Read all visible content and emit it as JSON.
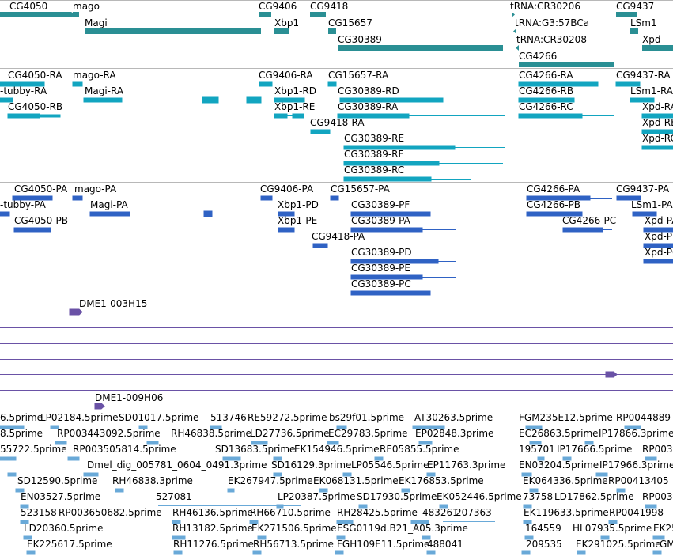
{
  "colors": {
    "gene": "#2a8f94",
    "transcript": "#12a5c0",
    "protein": "#2f62c4",
    "clone": "#6a52a6",
    "est": "#69a9d8",
    "track_divider": "#b8b8b8"
  },
  "tracks": {
    "genes": {
      "labels": [
        "CG4050",
        "mago",
        "Magi",
        "CG9406",
        "Xbp1",
        "CG9418",
        "CG15657",
        "CG30389",
        "tRNA:CR30206",
        "tRNA:G3:57BCa",
        "tRNA:CR30208",
        "CG4266",
        "CG9437",
        "LSm1",
        "Xpd"
      ]
    },
    "transcripts": {
      "labels": [
        "CG4050-RA",
        "mago-RA",
        "-tubby-RA",
        "Magi-RA",
        "CG4050-RB",
        "CG9406-RA",
        "CG15657-RA",
        "Xbp1-RD",
        "CG30389-RD",
        "Xbp1-RE",
        "CG30389-RA",
        "CG9418-RA",
        "CG30389-RE",
        "CG30389-RF",
        "CG30389-RC",
        "CG4266-RA",
        "CG9437-RA",
        "CG4266-RB",
        "LSm1-RA",
        "CG4266-RC",
        "Xpd-RA",
        "Xpd-RB",
        "Xpd-RC"
      ]
    },
    "proteins": {
      "labels": [
        "CG4050-PA",
        "mago-PA",
        "-tubby-PA",
        "Magi-PA",
        "CG4050-PB",
        "CG9406-PA",
        "CG15657-PA",
        "Xbp1-PD",
        "CG30389-PF",
        "Xbp1-PE",
        "CG30389-PA",
        "CG9418-PA",
        "CG30389-PD",
        "CG30389-PE",
        "CG30389-PC",
        "CG4266-PA",
        "CG9437-PA",
        "CG4266-PB",
        "LSm1-PA",
        "CG4266-PC",
        "Xpd-PA",
        "Xpd-PB",
        "Xpd-PC"
      ]
    },
    "clones": {
      "labels": [
        "DME1-003H15",
        "DME1-009H06"
      ]
    },
    "ests": {
      "labels": [
        "6.5prime",
        "LP02184.5prime",
        "SD01017.5prime",
        "513746",
        "RE59272.5prime",
        "bs29f01.5prime",
        "AT30263.5prime",
        "FGM235E12.5prime",
        "RP0044889",
        "8.5prime",
        "RP003443092.5prime",
        "RH46838.5prime",
        "LD27736.5prime",
        "EC29783.5prime",
        "EP02848.3prime",
        "EC26863.5prime",
        "IP17866.3prime",
        "55722.5prime",
        "RP003505814.5prime",
        "SD13683.5prime",
        "EK154946.5prime",
        "RE05855.5prime",
        "195701",
        "IP17666.5prime",
        "RP003",
        "Dmel_dig_005781_0604_0491.3prime",
        "SD16129.3prime",
        "LP05546.5prime",
        "EP11763.3prime",
        "EN03204.5prime",
        "IP17966.3prime",
        "SD12590.5prime",
        "RH46838.3prime",
        "EK267947.5prime",
        "EK068131.5prime",
        "EK176853.5prime",
        "EK064336.5prime",
        "RP00413405",
        "EN03527.5prime",
        "527081",
        "LP20387.5prime",
        "SD17930.5prime",
        "EK052446.5prime",
        "73758",
        "LD17862.5prime",
        "RP003",
        "523158",
        "RP003650682.5prime",
        "RH46136.5prime",
        "RH66710.5prime",
        "RH28425.5prime",
        "483261",
        "207363",
        "EK119633.5prime",
        "RP0041998",
        "LD20360.5prime",
        "RH13182.5prime",
        "EK271506.5prime",
        "ESG0119d.B21_A05.3prime",
        "164559",
        "HL07935.5prime",
        "EK25",
        "EK225617.5prime",
        "RH11276.5prime",
        "RH56713.5prime",
        "FGH109E11.5prime",
        "488041",
        "209535",
        "EK291025.5prime",
        "GM"
      ]
    }
  }
}
